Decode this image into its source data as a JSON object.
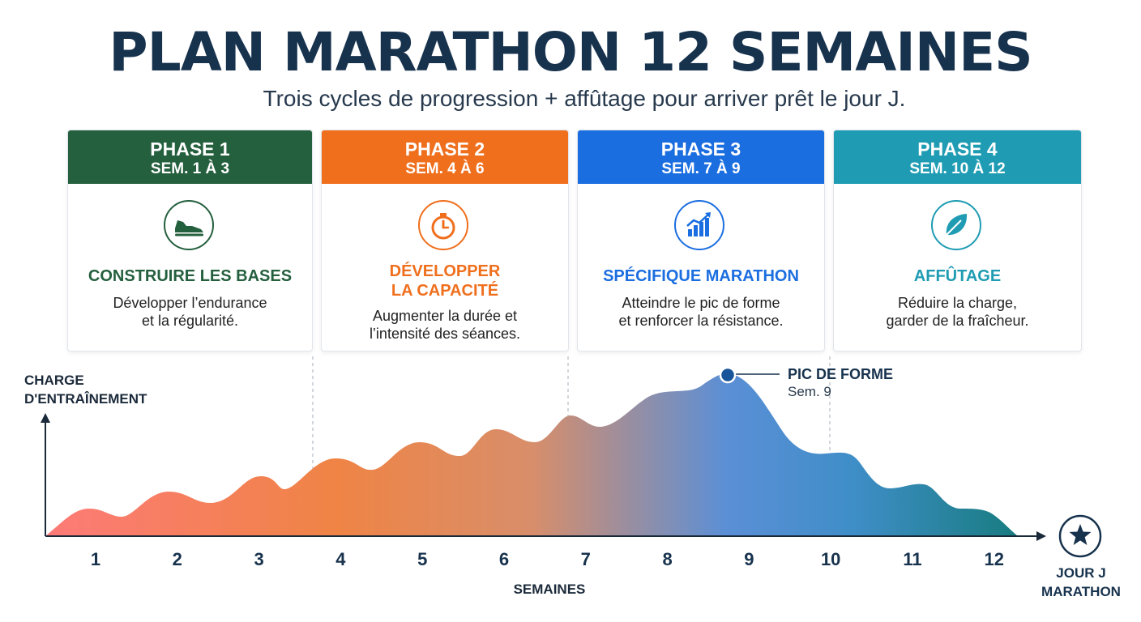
{
  "title": "PLAN MARATHON 12 SEMAINES",
  "subtitle": "Trois cycles de progression + affûtage pour arriver prêt le jour J.",
  "colors": {
    "title": "#17324d",
    "phase1": "#245f3e",
    "phase2": "#ef6f1d",
    "phase3": "#1b6ee0",
    "phase4": "#1f9cb3",
    "curve_start": "#fd7a77",
    "curve_mid": "#5b8fd6",
    "curve_end": "#187c80"
  },
  "phases": [
    {
      "phase": "PHASE 1",
      "weeks": "SEM. 1 À 3",
      "icon": "running-shoe-icon",
      "heading": "CONSTRUIRE LES BASES",
      "description": "Développer l’endurance\net la régularité."
    },
    {
      "phase": "PHASE 2",
      "weeks": "SEM. 4 À 6",
      "icon": "stopwatch-icon",
      "heading": "DÉVELOPPER\nLA CAPACITÉ",
      "description": "Augmenter la durée et\nl’intensité des séances."
    },
    {
      "phase": "PHASE 3",
      "weeks": "SEM. 7 À 9",
      "icon": "rising-bar-chart-icon",
      "heading": "SPÉCIFIQUE MARATHON",
      "description": "Atteindre le pic de forme\net renforcer la résistance."
    },
    {
      "phase": "PHASE 4",
      "weeks": "SEM. 10 À 12",
      "icon": "leaf-icon",
      "heading": "AFFÛTAGE",
      "description": "Réduire la charge,\ngarder de la fraîcheur."
    }
  ],
  "chart_data": {
    "type": "area",
    "ylabel": "CHARGE\nD'ENTRAÎNEMENT",
    "xlabel": "SEMAINES",
    "categories": [
      "1",
      "2",
      "3",
      "4",
      "5",
      "6",
      "7",
      "8",
      "9",
      "10",
      "11",
      "12"
    ],
    "y_axis_values_printed": false,
    "annotation": {
      "label": "PIC DE FORME",
      "sublabel": "Sem. 9",
      "week": 8.75
    },
    "end_marker": {
      "icon": "star-icon",
      "label": "JOUR J\nMARATHON"
    },
    "phase_boundaries": [
      3.65,
      6.8,
      10
    ],
    "grid": false,
    "legend": "none"
  }
}
